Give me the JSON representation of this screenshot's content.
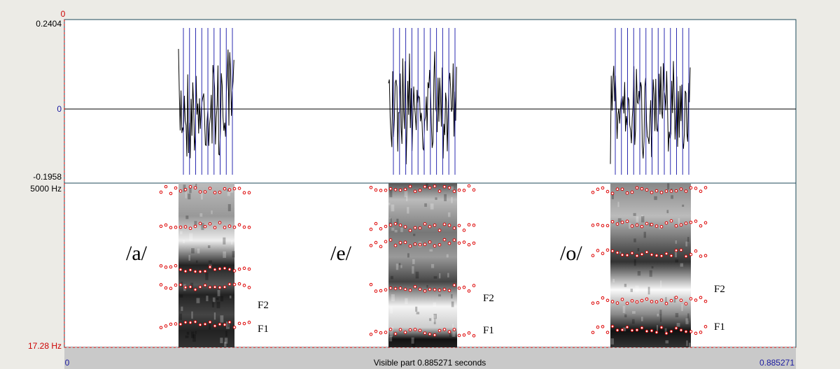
{
  "window": {
    "cursor_time": "0",
    "waveform": {
      "max_label": "0.2404",
      "zero_label": "0",
      "min_label": "-0.1958"
    },
    "spectrogram": {
      "top_label": "5000 Hz",
      "bottom_label": "17.28 Hz",
      "vowels": [
        {
          "label": "/a/",
          "f2": "F2",
          "f1": "F1"
        },
        {
          "label": "/e/",
          "f2": "F2",
          "f1": "F1"
        },
        {
          "label": "/o/",
          "f2": "F2",
          "f1": "F1"
        }
      ]
    },
    "time_bar": {
      "start": "0",
      "caption": "Visible part 0.885271 seconds",
      "end": "0.885271"
    }
  }
}
